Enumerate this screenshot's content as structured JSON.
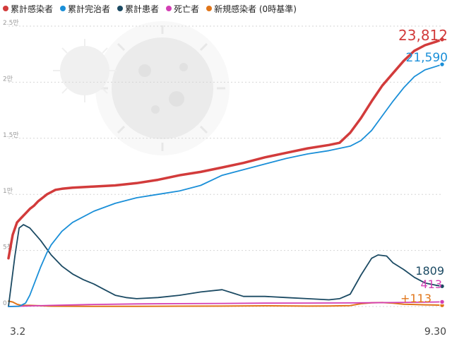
{
  "chart_data": {
    "type": "line",
    "legend_position": "top-left",
    "grid": true,
    "ylim": [
      0,
      25000
    ],
    "yticks": [
      {
        "value": 0,
        "label": "0"
      },
      {
        "value": 5000,
        "label": "5천"
      },
      {
        "value": 10000,
        "label": "1만"
      },
      {
        "value": 15000,
        "label": "1.5만"
      },
      {
        "value": 20000,
        "label": "2만"
      },
      {
        "value": 25000,
        "label": "2.5만"
      }
    ],
    "x_start_label": "3.2",
    "x_end_label": "9.30",
    "series": [
      {
        "name": "累計感染者",
        "color": "#d23b3b",
        "end_label": "23,812",
        "points": [
          [
            0,
            4300
          ],
          [
            2,
            6400
          ],
          [
            4,
            7500
          ],
          [
            6,
            7900
          ],
          [
            8,
            8300
          ],
          [
            10,
            8700
          ],
          [
            12,
            9000
          ],
          [
            14,
            9400
          ],
          [
            16,
            9700
          ],
          [
            18,
            10000
          ],
          [
            20,
            10200
          ],
          [
            22,
            10400
          ],
          [
            25,
            10500
          ],
          [
            30,
            10600
          ],
          [
            40,
            10700
          ],
          [
            50,
            10800
          ],
          [
            60,
            11000
          ],
          [
            70,
            11300
          ],
          [
            80,
            11700
          ],
          [
            90,
            12000
          ],
          [
            100,
            12400
          ],
          [
            110,
            12800
          ],
          [
            120,
            13300
          ],
          [
            130,
            13700
          ],
          [
            140,
            14100
          ],
          [
            150,
            14400
          ],
          [
            155,
            14600
          ],
          [
            160,
            15500
          ],
          [
            165,
            16800
          ],
          [
            170,
            18300
          ],
          [
            175,
            19700
          ],
          [
            180,
            20800
          ],
          [
            185,
            21900
          ],
          [
            190,
            22800
          ],
          [
            195,
            23300
          ],
          [
            200,
            23600
          ],
          [
            203,
            23812
          ]
        ]
      },
      {
        "name": "累計完治者",
        "color": "#1a8fd8",
        "end_label": "21,590",
        "points": [
          [
            0,
            0
          ],
          [
            5,
            20
          ],
          [
            8,
            300
          ],
          [
            10,
            1000
          ],
          [
            12,
            2000
          ],
          [
            15,
            3500
          ],
          [
            18,
            4800
          ],
          [
            20,
            5500
          ],
          [
            25,
            6700
          ],
          [
            30,
            7500
          ],
          [
            40,
            8500
          ],
          [
            50,
            9200
          ],
          [
            60,
            9700
          ],
          [
            70,
            10000
          ],
          [
            80,
            10300
          ],
          [
            90,
            10800
          ],
          [
            100,
            11700
          ],
          [
            110,
            12200
          ],
          [
            120,
            12700
          ],
          [
            130,
            13200
          ],
          [
            140,
            13600
          ],
          [
            150,
            13900
          ],
          [
            160,
            14300
          ],
          [
            165,
            14800
          ],
          [
            170,
            15700
          ],
          [
            175,
            17000
          ],
          [
            180,
            18300
          ],
          [
            185,
            19500
          ],
          [
            190,
            20500
          ],
          [
            195,
            21100
          ],
          [
            200,
            21400
          ],
          [
            203,
            21590
          ]
        ]
      },
      {
        "name": "累計患者",
        "color": "#1b4a63",
        "end_label": "1809",
        "points": [
          [
            0,
            0
          ],
          [
            3,
            4500
          ],
          [
            5,
            7000
          ],
          [
            7,
            7300
          ],
          [
            10,
            7000
          ],
          [
            15,
            5900
          ],
          [
            20,
            4600
          ],
          [
            25,
            3600
          ],
          [
            30,
            2900
          ],
          [
            35,
            2400
          ],
          [
            40,
            2000
          ],
          [
            45,
            1500
          ],
          [
            50,
            1000
          ],
          [
            55,
            800
          ],
          [
            60,
            700
          ],
          [
            70,
            800
          ],
          [
            80,
            1000
          ],
          [
            90,
            1300
          ],
          [
            100,
            1500
          ],
          [
            105,
            1200
          ],
          [
            110,
            900
          ],
          [
            115,
            900
          ],
          [
            120,
            900
          ],
          [
            130,
            800
          ],
          [
            140,
            700
          ],
          [
            150,
            600
          ],
          [
            155,
            700
          ],
          [
            160,
            1100
          ],
          [
            165,
            2800
          ],
          [
            170,
            4300
          ],
          [
            173,
            4600
          ],
          [
            177,
            4500
          ],
          [
            180,
            3900
          ],
          [
            185,
            3300
          ],
          [
            190,
            2600
          ],
          [
            195,
            2100
          ],
          [
            200,
            1900
          ],
          [
            203,
            1809
          ]
        ]
      },
      {
        "name": "死亡者",
        "color": "#d33fb4",
        "end_label": "413",
        "points": [
          [
            0,
            0
          ],
          [
            20,
            100
          ],
          [
            40,
            180
          ],
          [
            60,
            230
          ],
          [
            80,
            260
          ],
          [
            100,
            280
          ],
          [
            120,
            300
          ],
          [
            140,
            310
          ],
          [
            160,
            320
          ],
          [
            180,
            350
          ],
          [
            200,
            400
          ],
          [
            203,
            413
          ]
        ]
      },
      {
        "name": "新規感染者 (0時基準)",
        "color": "#e07519",
        "end_label": "+113",
        "points": [
          [
            0,
            480
          ],
          [
            2,
            400
          ],
          [
            4,
            200
          ],
          [
            6,
            100
          ],
          [
            10,
            100
          ],
          [
            20,
            30
          ],
          [
            40,
            10
          ],
          [
            60,
            20
          ],
          [
            80,
            30
          ],
          [
            100,
            40
          ],
          [
            120,
            60
          ],
          [
            140,
            40
          ],
          [
            150,
            50
          ],
          [
            160,
            80
          ],
          [
            165,
            250
          ],
          [
            170,
            330
          ],
          [
            175,
            350
          ],
          [
            180,
            300
          ],
          [
            185,
            200
          ],
          [
            190,
            180
          ],
          [
            195,
            150
          ],
          [
            200,
            130
          ],
          [
            203,
            113
          ]
        ]
      }
    ]
  }
}
